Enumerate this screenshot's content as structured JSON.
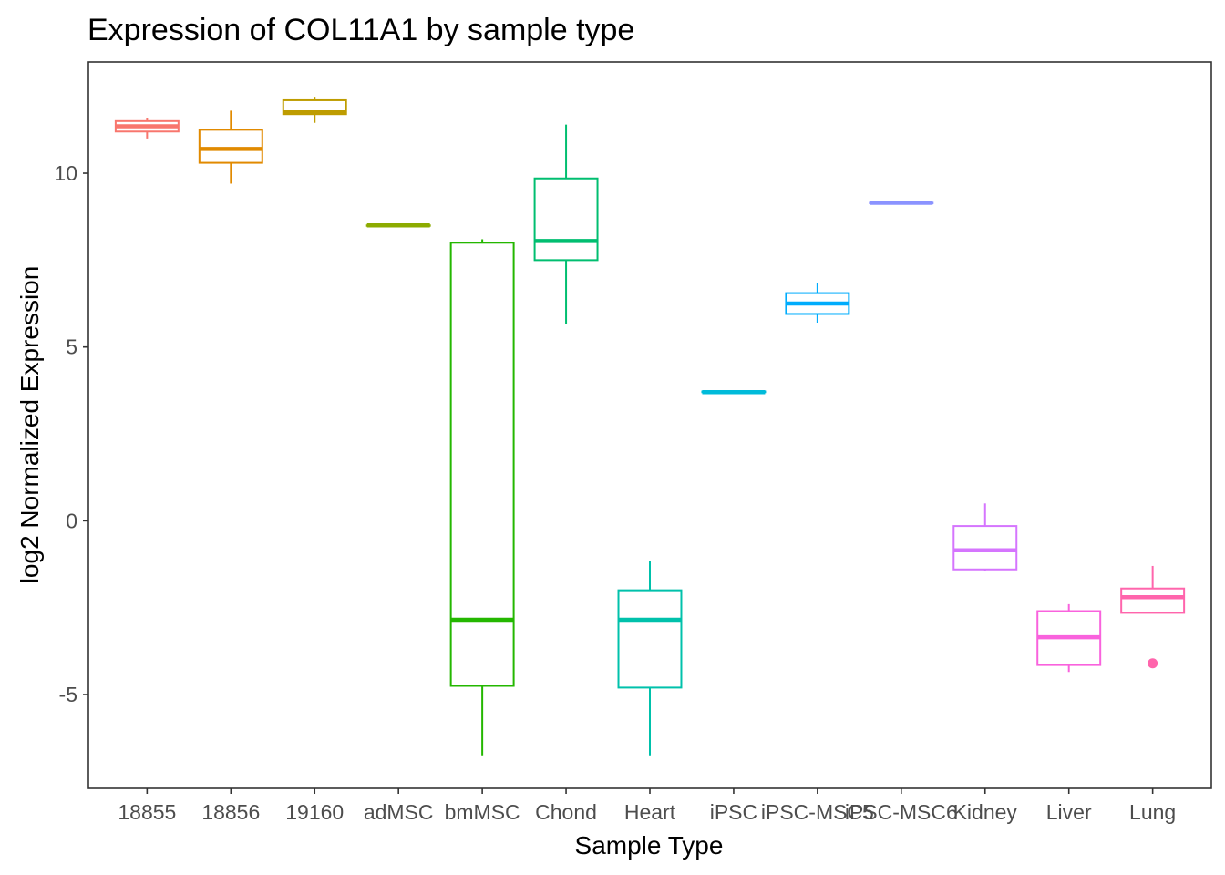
{
  "chart_data": {
    "type": "box",
    "title": "Expression of COL11A1 by sample type",
    "xlabel": "Sample Type",
    "ylabel": "log2 Normalized Expression",
    "ylim": [
      -7.7,
      13.2
    ],
    "yticks": [
      -5,
      0,
      5,
      10
    ],
    "grid": false,
    "legend": "none",
    "categories": [
      "18855",
      "18856",
      "19160",
      "adMSC",
      "bmMSC",
      "Chond",
      "Heart",
      "iPSC",
      "iPSC-MSC5",
      "iPSC-MSC6",
      "Kidney",
      "Liver",
      "Lung"
    ],
    "boxes": [
      {
        "category": "18855",
        "color": "#F8766D",
        "min": 11.0,
        "q1": 11.2,
        "median": 11.35,
        "q3": 11.5,
        "max": 11.6,
        "outliers": []
      },
      {
        "category": "18856",
        "color": "#E18A00",
        "min": 9.7,
        "q1": 10.3,
        "median": 10.7,
        "q3": 11.25,
        "max": 11.8,
        "outliers": []
      },
      {
        "category": "19160",
        "color": "#BE9C00",
        "min": 11.45,
        "q1": 11.7,
        "median": 11.75,
        "q3": 12.1,
        "max": 12.2,
        "outliers": []
      },
      {
        "category": "adMSC",
        "color": "#8CAB00",
        "min": 8.5,
        "q1": 8.5,
        "median": 8.5,
        "q3": 8.5,
        "max": 8.5,
        "outliers": []
      },
      {
        "category": "bmMSC",
        "color": "#24B700",
        "min": -6.75,
        "q1": -4.75,
        "median": -2.85,
        "q3": 8.0,
        "max": 8.1,
        "outliers": []
      },
      {
        "category": "Chond",
        "color": "#00BE70",
        "min": 5.65,
        "q1": 7.5,
        "median": 8.05,
        "q3": 9.85,
        "max": 11.4,
        "outliers": []
      },
      {
        "category": "Heart",
        "color": "#00C1AB",
        "min": -6.75,
        "q1": -4.8,
        "median": -2.85,
        "q3": -2.0,
        "max": -1.15,
        "outliers": []
      },
      {
        "category": "iPSC",
        "color": "#00BBDA",
        "min": 3.65,
        "q1": 3.7,
        "median": 3.7,
        "q3": 3.72,
        "max": 3.75,
        "outliers": []
      },
      {
        "category": "iPSC-MSC5",
        "color": "#00ACFC",
        "min": 5.7,
        "q1": 5.95,
        "median": 6.25,
        "q3": 6.55,
        "max": 6.85,
        "outliers": []
      },
      {
        "category": "iPSC-MSC6",
        "color": "#8B93FF",
        "min": 9.15,
        "q1": 9.15,
        "median": 9.15,
        "q3": 9.15,
        "max": 9.15,
        "outliers": []
      },
      {
        "category": "Kidney",
        "color": "#D575FE",
        "min": -1.45,
        "q1": -1.4,
        "median": -0.85,
        "q3": -0.15,
        "max": 0.5,
        "outliers": []
      },
      {
        "category": "Liver",
        "color": "#F962DD",
        "min": -4.35,
        "q1": -4.15,
        "median": -3.35,
        "q3": -2.6,
        "max": -2.4,
        "outliers": []
      },
      {
        "category": "Lung",
        "color": "#FF65AC",
        "min": -2.65,
        "q1": -2.65,
        "median": -2.2,
        "q3": -1.95,
        "max": -1.3,
        "outliers": [
          -4.1
        ]
      }
    ]
  }
}
